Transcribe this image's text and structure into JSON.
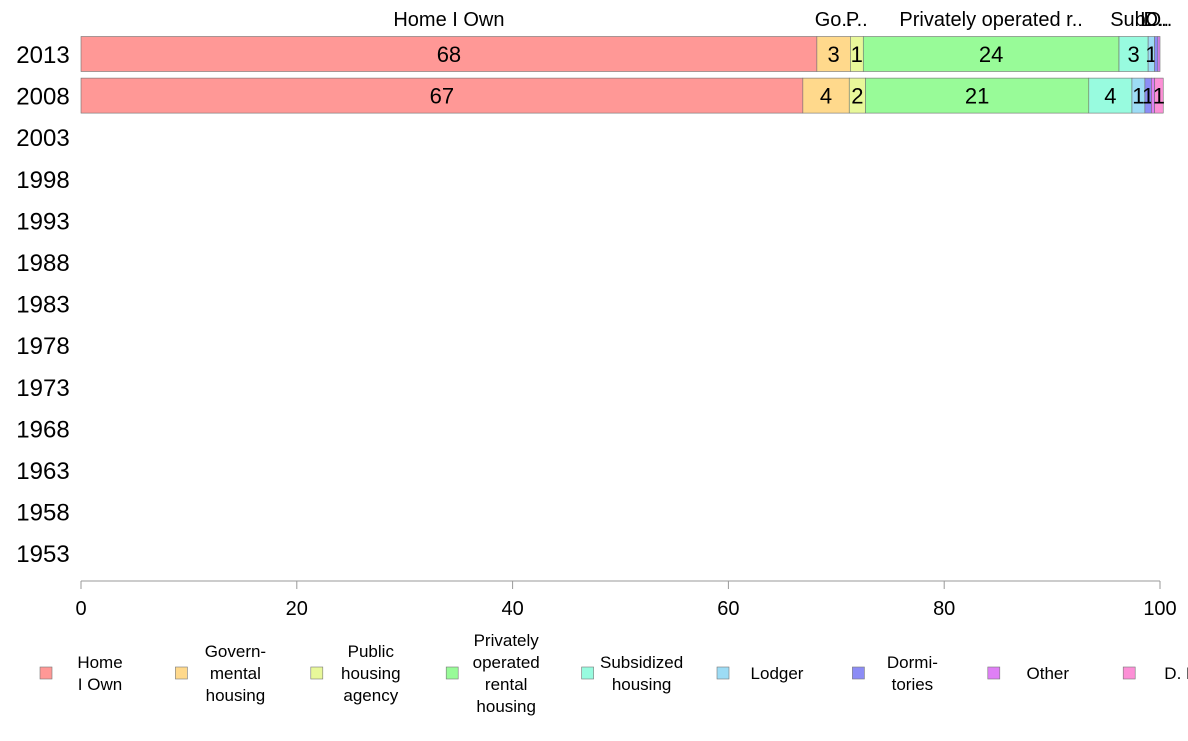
{
  "chart_data": {
    "type": "bar",
    "orientation": "horizontal",
    "stacked": true,
    "title": "",
    "xlabel": "",
    "ylabel": "",
    "xlim": [
      0,
      100
    ],
    "x_ticks": [
      0,
      20,
      40,
      60,
      80,
      100
    ],
    "grid": false,
    "legend_position": "bottom",
    "categories": [
      "2013",
      "2008",
      "2003",
      "1998",
      "1993",
      "1988",
      "1983",
      "1978",
      "1973",
      "1968",
      "1963",
      "1958",
      "1953"
    ],
    "series": [
      {
        "name": "Home I Own",
        "legend_lines": [
          "Home",
          "I Own"
        ],
        "top_label": "Home I Own",
        "color": "#ff9896",
        "values": [
          68.2,
          66.9,
          null,
          null,
          null,
          null,
          null,
          null,
          null,
          null,
          null,
          null,
          null
        ],
        "labels": [
          "68",
          "67",
          "",
          "",
          "",
          "",
          "",
          "",
          "",
          "",
          "",
          "",
          ""
        ]
      },
      {
        "name": "Govern-mental housing",
        "legend_lines": [
          "Govern-",
          "mental",
          "housing"
        ],
        "top_label": "Go..",
        "color": "#ffd98c",
        "values": [
          3.1,
          4.3,
          null,
          null,
          null,
          null,
          null,
          null,
          null,
          null,
          null,
          null,
          null
        ],
        "labels": [
          "3",
          "4",
          "",
          "",
          "",
          "",
          "",
          "",
          "",
          "",
          "",
          "",
          ""
        ]
      },
      {
        "name": "Public housing agency",
        "legend_lines": [
          "Public",
          "housing",
          "agency"
        ],
        "top_label": "P..",
        "color": "#e8f89a",
        "values": [
          1.2,
          1.5,
          null,
          null,
          null,
          null,
          null,
          null,
          null,
          null,
          null,
          null,
          null
        ],
        "labels": [
          "1",
          "2",
          "",
          "",
          "",
          "",
          "",
          "",
          "",
          "",
          "",
          "",
          ""
        ]
      },
      {
        "name": "Privately operated rental housing",
        "legend_lines": [
          "Privately",
          "operated",
          "rental",
          "housing"
        ],
        "top_label": "Privately operated r..",
        "color": "#98fb98",
        "values": [
          23.7,
          20.7,
          null,
          null,
          null,
          null,
          null,
          null,
          null,
          null,
          null,
          null,
          null
        ],
        "labels": [
          "24",
          "21",
          "",
          "",
          "",
          "",
          "",
          "",
          "",
          "",
          "",
          "",
          ""
        ]
      },
      {
        "name": "Subsidized housing",
        "legend_lines": [
          "Subsidized",
          "housing"
        ],
        "top_label": "Sub..",
        "color": "#98fbdf",
        "values": [
          2.7,
          4.0,
          null,
          null,
          null,
          null,
          null,
          null,
          null,
          null,
          null,
          null,
          null
        ],
        "labels": [
          "3",
          "4",
          "",
          "",
          "",
          "",
          "",
          "",
          "",
          "",
          "",
          "",
          ""
        ]
      },
      {
        "name": "Lodger",
        "legend_lines": [
          "Lodger"
        ],
        "top_label": "L..",
        "color": "#9ddcf5",
        "values": [
          0.6,
          1.2,
          null,
          null,
          null,
          null,
          null,
          null,
          null,
          null,
          null,
          null,
          null
        ],
        "labels": [
          "1",
          "1",
          "",
          "",
          "",
          "",
          "",
          "",
          "",
          "",
          "",
          "",
          ""
        ]
      },
      {
        "name": "Dormi-tories",
        "legend_lines": [
          "Dormi-",
          "tories"
        ],
        "top_label": "D..",
        "color": "#8c8cf5",
        "values": [
          0.3,
          0.6,
          null,
          null,
          null,
          null,
          null,
          null,
          null,
          null,
          null,
          null,
          null
        ],
        "labels": [
          "",
          "1",
          "",
          "",
          "",
          "",
          "",
          "",
          "",
          "",
          "",
          "",
          ""
        ]
      },
      {
        "name": "Other",
        "legend_lines": [
          "Other"
        ],
        "top_label": "O..",
        "color": "#df7ff5",
        "values": [
          0.2,
          0.3,
          null,
          null,
          null,
          null,
          null,
          null,
          null,
          null,
          null,
          null,
          null
        ],
        "labels": [
          "",
          "",
          "",
          "",
          "",
          "",
          "",
          "",
          "",
          "",
          "",
          "",
          ""
        ]
      },
      {
        "name": "D. K.",
        "legend_lines": [
          "D. K."
        ],
        "top_label": "",
        "color": "#fc90d6",
        "values": [
          0.0,
          0.8,
          null,
          null,
          null,
          null,
          null,
          null,
          null,
          null,
          null,
          null,
          null
        ],
        "labels": [
          "",
          "1",
          "",
          "",
          "",
          "",
          "",
          "",
          "",
          "",
          "",
          "",
          ""
        ]
      }
    ]
  }
}
